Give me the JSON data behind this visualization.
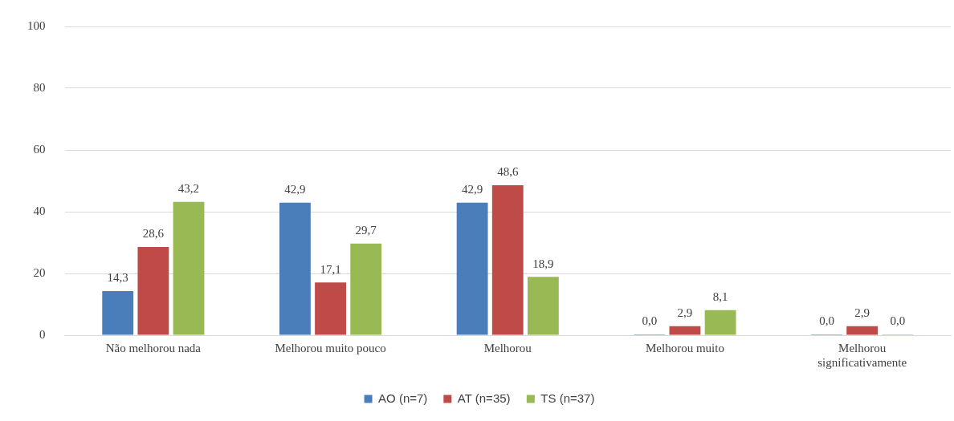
{
  "chart_data": {
    "type": "bar",
    "categories": [
      "Não melhorou nada",
      "Melhorou muito pouco",
      "Melhorou",
      "Melhorou muito",
      "Melhorou significativamente"
    ],
    "series": [
      {
        "name": "AO (n=7)",
        "color": "#4a7ebb",
        "values": [
          14.3,
          42.9,
          42.9,
          0.0,
          0.0
        ],
        "value_labels": [
          "14,3",
          "42,9",
          "42,9",
          "0,0",
          "0,0"
        ]
      },
      {
        "name": "AT (n=35)",
        "color": "#be4b48",
        "values": [
          28.6,
          17.1,
          48.6,
          2.9,
          2.9
        ],
        "value_labels": [
          "28,6",
          "17,1",
          "48,6",
          "2,9",
          "2,9"
        ]
      },
      {
        "name": "TS (n=37)",
        "color": "#98b954",
        "values": [
          43.2,
          29.7,
          18.9,
          8.1,
          0.0
        ],
        "value_labels": [
          "43,2",
          "29,7",
          "18,9",
          "8,1",
          "0,0"
        ]
      }
    ],
    "ylim": [
      0,
      100
    ],
    "yticks": [
      0,
      20,
      40,
      60,
      80,
      100
    ],
    "grid": "y",
    "legend": "bottom"
  }
}
